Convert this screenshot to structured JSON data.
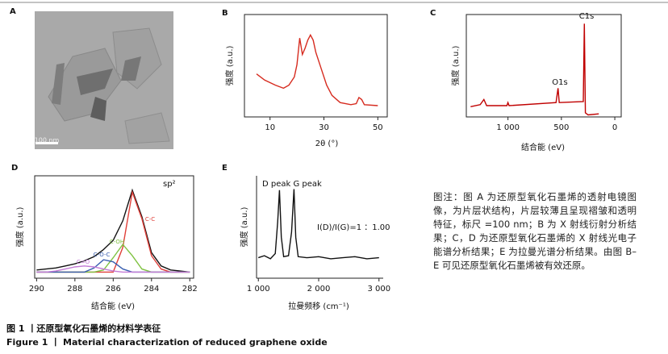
{
  "image_panel": {
    "label": "A",
    "scale_bar": "100 nm"
  },
  "chart_data": [
    {
      "type": "line",
      "label": "B",
      "x_label": "2θ (°)",
      "y_label": "强度 (a.u.)",
      "x": [
        5,
        8,
        12,
        15,
        17,
        19,
        20,
        21,
        22,
        23,
        24,
        25,
        26,
        27,
        29,
        31,
        33,
        36,
        40,
        42,
        43,
        44,
        45,
        50
      ],
      "series": [
        {
          "color": "#d62b1f",
          "values": [
            42,
            36,
            31,
            28,
            31,
            39,
            51,
            77,
            61,
            67,
            75,
            80,
            75,
            63,
            47,
            31,
            21,
            14,
            12,
            13,
            19,
            17,
            12,
            11
          ]
        }
      ],
      "xlim": [
        0.5,
        53.5
      ],
      "ylim": [
        0,
        100
      ],
      "xticks": [
        10,
        30,
        50
      ],
      "frame": "box"
    },
    {
      "type": "line",
      "label": "C",
      "x_label": "结合能 (eV)",
      "y_label": "强度 (a.u.)",
      "x": [
        1350,
        1260,
        1225,
        1200,
        1010,
        1000,
        990,
        550,
        531,
        520,
        295,
        285,
        275,
        250,
        150
      ],
      "series": [
        {
          "color": "#c00000",
          "values": [
            10,
            12,
            17,
            11,
            11,
            14,
            11,
            14,
            28,
            14,
            15,
            91,
            4,
            2,
            3
          ]
        }
      ],
      "annotations": [
        "C1s",
        "O1s"
      ],
      "xlim": [
        1390,
        -60
      ],
      "ylim": [
        0,
        100
      ],
      "xticks": [
        {
          "value": 1000,
          "label": "1 000"
        },
        500,
        0
      ],
      "frame": "box"
    },
    {
      "type": "line",
      "label": "D",
      "x_label": "结合能 (eV)",
      "y_label": "强度 (a.u.)",
      "x": [
        290,
        289.5,
        289,
        288.5,
        288,
        287.5,
        287,
        286.5,
        286,
        285.5,
        285,
        284.5,
        284,
        283.5,
        283,
        282.5,
        282
      ],
      "series": [
        {
          "color": "#111111",
          "values": [
            8,
            9,
            10,
            12,
            14,
            17,
            21,
            28,
            37,
            56,
            86,
            60,
            25,
            12,
            8,
            7,
            6
          ]
        },
        {
          "name": "C-C",
          "color": "#e0403a",
          "values": [
            6,
            6,
            6,
            6,
            6,
            6,
            6,
            6,
            6,
            30,
            84,
            58,
            22,
            9,
            6,
            6,
            6
          ]
        },
        {
          "name": "C-OH",
          "color": "#7fc241",
          "values": [
            6,
            6,
            6,
            6,
            6,
            6,
            6,
            8,
            20,
            33,
            22,
            9,
            6,
            6,
            6,
            6,
            6
          ]
        },
        {
          "name": "C-O-C",
          "color": "#3a5fb0",
          "values": [
            6,
            6,
            6,
            6,
            6,
            6,
            10,
            18,
            16,
            9,
            6,
            6,
            6,
            6,
            6,
            6,
            6
          ]
        },
        {
          "name": "C=O",
          "color": "#c37bd6",
          "values": [
            6,
            6,
            7,
            9,
            11,
            12,
            11,
            9,
            7,
            6,
            6,
            6,
            6,
            6,
            6,
            6,
            6
          ]
        }
      ],
      "annotations": [
        "sp²"
      ],
      "xlim": [
        290.1,
        281.8
      ],
      "ylim": [
        0,
        100
      ],
      "xticks": [
        290,
        288,
        286,
        284,
        282
      ],
      "frame": "box"
    },
    {
      "type": "line",
      "label": "E",
      "x_label": "拉曼频移 (cm⁻¹)",
      "y_label": "强度 (a.u.)",
      "x": [
        1000,
        1100,
        1200,
        1280,
        1320,
        1350,
        1380,
        1420,
        1500,
        1550,
        1590,
        1620,
        1660,
        1800,
        2000,
        2200,
        2400,
        2600,
        2800,
        3000
      ],
      "series": [
        {
          "color": "#111111",
          "values": [
            20,
            22,
            19,
            24,
            55,
            86,
            40,
            21,
            22,
            45,
            87,
            40,
            21,
            20,
            21,
            19,
            20,
            21,
            19,
            20
          ]
        }
      ],
      "annotations": [
        "D peak G peak",
        "I(D)/I(G)=1 ：1.00"
      ],
      "xlim": [
        970,
        3070
      ],
      "ylim": [
        0,
        100
      ],
      "xticks": [
        {
          "value": 1000,
          "label": "1 000"
        },
        {
          "value": 2000,
          "label": "2 000"
        },
        {
          "value": 3000,
          "label": "3 000"
        }
      ],
      "frame": "axes"
    }
  ],
  "note": "图注：图 A 为还原型氧化石墨烯的透射电镜图像，为片层状结构，片层较薄且呈现褶皱和透明特征，标尺 =100 nm；B 为 X 射线衍射分析结果；C，D 为还原型氧化石墨烯的 X 射线光电子能谱分析结果；E 为拉曼光谱分析结果。由图 B–E 可见还原型氧化石墨烯被有效还原。",
  "caption_cn": "图 1 丨还原型氧化石墨烯的材料学表征",
  "caption_en": "Figure 1 丨 Material characterization of reduced graphene oxide"
}
